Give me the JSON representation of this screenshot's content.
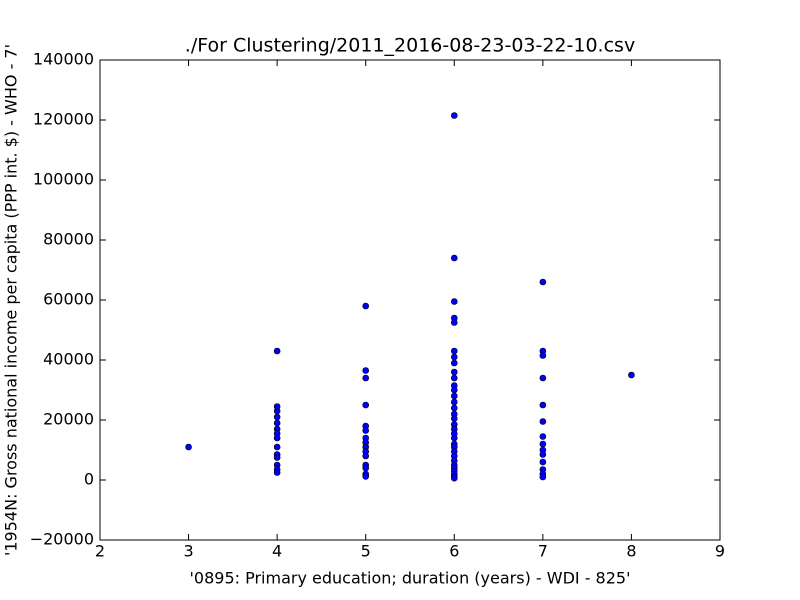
{
  "chart_data": {
    "type": "scatter",
    "title": "./For Clustering/2011_2016-08-23-03-22-10.csv",
    "x_label": "'0895: Primary education; duration  (years) - WDI - 825'",
    "y_label": "'1954N: Gross national income per capita (PPP int. $) - WHO - 7'",
    "color": "#0000ff",
    "x": [
      3,
      4,
      4,
      4,
      4,
      4,
      4,
      4,
      4,
      4,
      4,
      4,
      4,
      4,
      4,
      5,
      5,
      5,
      5,
      5,
      5,
      5,
      5,
      5,
      5,
      5,
      5,
      5,
      5,
      5,
      6,
      6,
      6,
      6,
      6,
      6,
      6,
      6,
      6,
      6,
      6,
      6,
      6,
      6,
      6,
      6,
      6,
      6,
      6,
      6,
      6,
      6,
      6,
      6,
      6,
      6,
      6,
      6,
      6,
      6,
      6,
      6,
      7,
      7,
      7,
      7,
      7,
      7,
      7,
      7,
      7,
      7,
      7,
      7,
      7,
      7,
      8
    ],
    "values": [
      11000,
      43000,
      24500,
      23000,
      21000,
      19000,
      17000,
      15500,
      14000,
      11000,
      8500,
      7500,
      5000,
      3500,
      2500,
      58000,
      36500,
      34000,
      25000,
      18000,
      16500,
      14000,
      12500,
      11000,
      9500,
      8000,
      5000,
      4000,
      2000,
      1200,
      121500,
      74000,
      59500,
      54000,
      52500,
      43000,
      41000,
      39000,
      36000,
      34000,
      31500,
      30000,
      28000,
      26000,
      24000,
      22000,
      20500,
      18500,
      17000,
      15500,
      14000,
      12000,
      11000,
      9500,
      8000,
      6500,
      5000,
      4000,
      3000,
      2000,
      1200,
      600,
      66000,
      43000,
      41500,
      34000,
      25000,
      19500,
      14500,
      12000,
      10000,
      8500,
      6000,
      3500,
      2000,
      1000,
      35000
    ],
    "xlim": [
      2,
      9
    ],
    "xticks": [
      2,
      3,
      4,
      5,
      6,
      7,
      8,
      9
    ],
    "ylim": [
      -20000,
      140000
    ],
    "yticks": [
      {
        "value": -20000,
        "label": "−20000"
      },
      0,
      20000,
      40000,
      60000,
      80000,
      100000,
      120000,
      140000
    ]
  }
}
